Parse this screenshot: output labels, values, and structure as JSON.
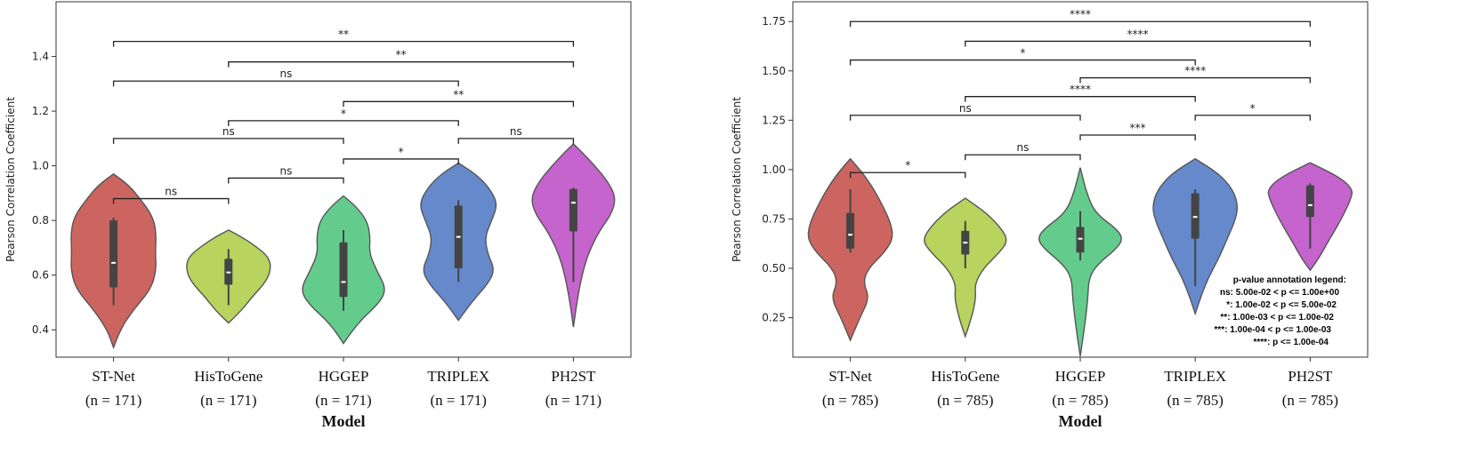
{
  "chart_data": [
    {
      "type": "violin",
      "xlabel": "Model",
      "ylabel": "Pearson Correlation Coefficient",
      "ylim": [
        0.3,
        1.6
      ],
      "yticks": [
        "0.4",
        "0.6",
        "0.8",
        "1.0",
        "1.2",
        "1.4"
      ],
      "categories": [
        {
          "name": "ST-Net",
          "n": "(n = 171)",
          "color": "#CC6560",
          "median": 0.645,
          "q1": 0.555,
          "q3": 0.8,
          "wlo": 0.49,
          "whi": 0.81,
          "vmin": 0.335,
          "vmax": 0.97,
          "profile": [
            [
              0.335,
              0.0
            ],
            [
              0.4,
              0.15
            ],
            [
              0.47,
              0.45
            ],
            [
              0.55,
              0.88
            ],
            [
              0.62,
              1.0
            ],
            [
              0.68,
              0.98
            ],
            [
              0.76,
              1.0
            ],
            [
              0.82,
              0.9
            ],
            [
              0.88,
              0.62
            ],
            [
              0.93,
              0.35
            ],
            [
              0.97,
              0.0
            ]
          ]
        },
        {
          "name": "HisToGene",
          "n": "(n = 171)",
          "color": "#B8D35E",
          "median": 0.61,
          "q1": 0.565,
          "q3": 0.66,
          "wlo": 0.49,
          "whi": 0.695,
          "vmin": 0.425,
          "vmax": 0.765,
          "profile": [
            [
              0.425,
              0.0
            ],
            [
              0.47,
              0.3
            ],
            [
              0.52,
              0.55
            ],
            [
              0.58,
              0.9
            ],
            [
              0.63,
              1.0
            ],
            [
              0.67,
              0.92
            ],
            [
              0.71,
              0.6
            ],
            [
              0.74,
              0.3
            ],
            [
              0.765,
              0.0
            ]
          ]
        },
        {
          "name": "HGGEP",
          "n": "(n = 171)",
          "color": "#63CC8D",
          "median": 0.575,
          "q1": 0.52,
          "q3": 0.72,
          "wlo": 0.47,
          "whi": 0.765,
          "vmin": 0.35,
          "vmax": 0.89,
          "profile": [
            [
              0.35,
              0.0
            ],
            [
              0.42,
              0.3
            ],
            [
              0.5,
              0.85
            ],
            [
              0.55,
              1.0
            ],
            [
              0.61,
              0.8
            ],
            [
              0.68,
              0.6
            ],
            [
              0.74,
              0.63
            ],
            [
              0.8,
              0.55
            ],
            [
              0.85,
              0.3
            ],
            [
              0.89,
              0.0
            ]
          ]
        },
        {
          "name": "TRIPLEX",
          "n": "(n = 171)",
          "color": "#6689CC",
          "median": 0.74,
          "q1": 0.625,
          "q3": 0.855,
          "wlo": 0.575,
          "whi": 0.875,
          "vmin": 0.435,
          "vmax": 1.01,
          "profile": [
            [
              0.435,
              0.0
            ],
            [
              0.5,
              0.3
            ],
            [
              0.57,
              0.7
            ],
            [
              0.62,
              0.85
            ],
            [
              0.68,
              0.68
            ],
            [
              0.74,
              0.62
            ],
            [
              0.8,
              0.78
            ],
            [
              0.86,
              0.92
            ],
            [
              0.92,
              0.72
            ],
            [
              0.97,
              0.4
            ],
            [
              1.01,
              0.0
            ]
          ]
        },
        {
          "name": "PH2ST",
          "n": "(n = 171)",
          "color": "#C464CC",
          "median": 0.865,
          "q1": 0.76,
          "q3": 0.915,
          "wlo": 0.575,
          "whi": 0.92,
          "vmin": 0.41,
          "vmax": 1.08,
          "profile": [
            [
              0.41,
              0.0
            ],
            [
              0.5,
              0.08
            ],
            [
              0.6,
              0.2
            ],
            [
              0.68,
              0.35
            ],
            [
              0.76,
              0.6
            ],
            [
              0.82,
              0.88
            ],
            [
              0.88,
              1.0
            ],
            [
              0.94,
              0.82
            ],
            [
              1.0,
              0.5
            ],
            [
              1.05,
              0.2
            ],
            [
              1.08,
              0.0
            ]
          ]
        }
      ],
      "annotations": [
        {
          "from": 0,
          "to": 1,
          "y": 0.88,
          "label": "ns"
        },
        {
          "from": 1,
          "to": 2,
          "y": 0.955,
          "label": "ns"
        },
        {
          "from": 0,
          "to": 2,
          "y": 1.1,
          "label": "ns"
        },
        {
          "from": 2,
          "to": 3,
          "y": 1.025,
          "label": "*"
        },
        {
          "from": 3,
          "to": 4,
          "y": 1.1,
          "label": "ns"
        },
        {
          "from": 1,
          "to": 3,
          "y": 1.165,
          "label": "*"
        },
        {
          "from": 2,
          "to": 4,
          "y": 1.235,
          "label": "**"
        },
        {
          "from": 0,
          "to": 3,
          "y": 1.31,
          "label": "ns"
        },
        {
          "from": 1,
          "to": 4,
          "y": 1.38,
          "label": "**"
        },
        {
          "from": 0,
          "to": 4,
          "y": 1.455,
          "label": "**"
        }
      ]
    },
    {
      "type": "violin",
      "xlabel": "Model",
      "ylabel": "Pearson Correlation Coefficient",
      "ylim": [
        0.05,
        1.85
      ],
      "yticks": [
        "0.25",
        "0.50",
        "0.75",
        "1.00",
        "1.25",
        "1.50",
        "1.75"
      ],
      "categories": [
        {
          "name": "ST-Net",
          "n": "(n = 785)",
          "color": "#CC6560",
          "median": 0.67,
          "q1": 0.6,
          "q3": 0.78,
          "wlo": 0.58,
          "whi": 0.9,
          "vmin": 0.135,
          "vmax": 1.055,
          "profile": [
            [
              0.135,
              0.0
            ],
            [
              0.25,
              0.22
            ],
            [
              0.35,
              0.45
            ],
            [
              0.43,
              0.3
            ],
            [
              0.5,
              0.42
            ],
            [
              0.58,
              0.8
            ],
            [
              0.65,
              1.0
            ],
            [
              0.72,
              0.96
            ],
            [
              0.8,
              0.8
            ],
            [
              0.9,
              0.55
            ],
            [
              0.98,
              0.3
            ],
            [
              1.055,
              0.0
            ]
          ]
        },
        {
          "name": "HisToGene",
          "n": "(n = 785)",
          "color": "#B8D35E",
          "median": 0.63,
          "q1": 0.57,
          "q3": 0.69,
          "wlo": 0.5,
          "whi": 0.74,
          "vmin": 0.155,
          "vmax": 0.855,
          "profile": [
            [
              0.155,
              0.0
            ],
            [
              0.25,
              0.15
            ],
            [
              0.35,
              0.25
            ],
            [
              0.42,
              0.22
            ],
            [
              0.5,
              0.42
            ],
            [
              0.58,
              0.8
            ],
            [
              0.64,
              1.0
            ],
            [
              0.7,
              0.85
            ],
            [
              0.78,
              0.5
            ],
            [
              0.855,
              0.0
            ]
          ]
        },
        {
          "name": "HGGEP",
          "n": "(n = 785)",
          "color": "#63CC8D",
          "median": 0.65,
          "q1": 0.58,
          "q3": 0.71,
          "wlo": 0.54,
          "whi": 0.79,
          "vmin": 0.055,
          "vmax": 1.01,
          "profile": [
            [
              0.055,
              0.0
            ],
            [
              0.2,
              0.1
            ],
            [
              0.35,
              0.18
            ],
            [
              0.45,
              0.2
            ],
            [
              0.52,
              0.4
            ],
            [
              0.6,
              0.85
            ],
            [
              0.65,
              1.0
            ],
            [
              0.7,
              0.85
            ],
            [
              0.78,
              0.35
            ],
            [
              0.88,
              0.15
            ],
            [
              1.01,
              0.0
            ]
          ]
        },
        {
          "name": "TRIPLEX",
          "n": "(n = 785)",
          "color": "#6689CC",
          "median": 0.76,
          "q1": 0.65,
          "q3": 0.88,
          "wlo": 0.41,
          "whi": 0.9,
          "vmin": 0.27,
          "vmax": 1.055,
          "profile": [
            [
              0.27,
              0.0
            ],
            [
              0.35,
              0.12
            ],
            [
              0.45,
              0.3
            ],
            [
              0.55,
              0.55
            ],
            [
              0.65,
              0.75
            ],
            [
              0.75,
              0.95
            ],
            [
              0.82,
              1.0
            ],
            [
              0.9,
              0.88
            ],
            [
              0.98,
              0.55
            ],
            [
              1.055,
              0.0
            ]
          ]
        },
        {
          "name": "PH2ST",
          "n": "(n = 785)",
          "color": "#C464CC",
          "median": 0.82,
          "q1": 0.76,
          "q3": 0.92,
          "wlo": 0.6,
          "whi": 0.93,
          "vmin": 0.49,
          "vmax": 1.035,
          "profile": [
            [
              0.49,
              0.0
            ],
            [
              0.55,
              0.2
            ],
            [
              0.62,
              0.38
            ],
            [
              0.7,
              0.6
            ],
            [
              0.78,
              0.8
            ],
            [
              0.85,
              0.95
            ],
            [
              0.9,
              1.0
            ],
            [
              0.96,
              0.7
            ],
            [
              1.035,
              0.0
            ]
          ]
        }
      ],
      "annotations": [
        {
          "from": 0,
          "to": 1,
          "y": 0.985,
          "label": "*"
        },
        {
          "from": 1,
          "to": 2,
          "y": 1.075,
          "label": "ns"
        },
        {
          "from": 2,
          "to": 3,
          "y": 1.175,
          "label": "***"
        },
        {
          "from": 0,
          "to": 2,
          "y": 1.275,
          "label": "ns"
        },
        {
          "from": 3,
          "to": 4,
          "y": 1.275,
          "label": "*"
        },
        {
          "from": 1,
          "to": 3,
          "y": 1.37,
          "label": "****"
        },
        {
          "from": 2,
          "to": 4,
          "y": 1.465,
          "label": "****"
        },
        {
          "from": 0,
          "to": 3,
          "y": 1.555,
          "label": "*"
        },
        {
          "from": 1,
          "to": 4,
          "y": 1.65,
          "label": "****"
        },
        {
          "from": 0,
          "to": 4,
          "y": 1.75,
          "label": "****"
        }
      ],
      "legend": {
        "title": "p-value annotation legend:",
        "lines": [
          "ns: 5.00e-02 < p <= 1.00e+00",
          "*: 1.00e-02 < p <= 5.00e-02",
          "**: 1.00e-03 < p <= 1.00e-02",
          "***: 1.00e-04 < p <= 1.00e-03",
          "****: p <= 1.00e-04"
        ]
      }
    }
  ]
}
